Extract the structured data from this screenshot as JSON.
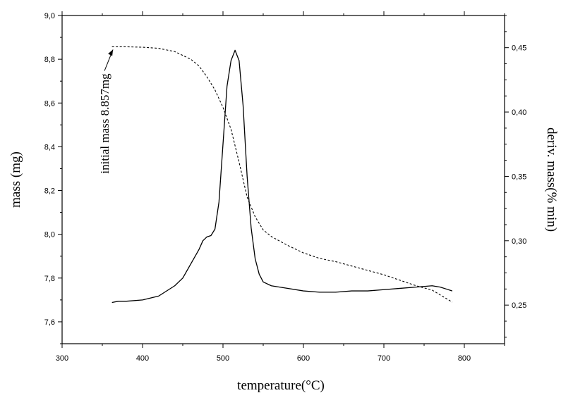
{
  "chart_data": {
    "type": "line",
    "xlabel": "temperature(°C)",
    "ylabel_left": "mass (mg)",
    "ylabel_right": "deriv. mass(% min)",
    "x_range": [
      300,
      850
    ],
    "y_left_range": [
      7.5,
      9.0
    ],
    "y_right_range": [
      0.22,
      0.475
    ],
    "x_ticks": [
      300,
      400,
      500,
      600,
      700,
      800
    ],
    "x_tick_labels": [
      "300",
      "400",
      "500",
      "600",
      "700",
      "800"
    ],
    "y_left_ticks": [
      7.6,
      7.8,
      8.0,
      8.2,
      8.4,
      8.6,
      8.8,
      9.0
    ],
    "y_left_tick_labels": [
      "7,6",
      "7,8",
      "8,0",
      "8,2",
      "8,4",
      "8,6",
      "8,8",
      "9,0"
    ],
    "y_right_ticks": [
      0.25,
      0.3,
      0.35,
      0.4,
      0.45
    ],
    "y_right_tick_labels": [
      "0,25",
      "0,30",
      "0,35",
      "0,40",
      "0,45"
    ],
    "grid": false,
    "legend": "none",
    "annotation": {
      "text": "initial mass 8.857mg",
      "x": 365,
      "y": 8.857,
      "axis": "left"
    },
    "series": [
      {
        "axis": "left",
        "style": "dashed",
        "x": [
          362,
          380,
          400,
          420,
          440,
          460,
          470,
          480,
          490,
          500,
          510,
          520,
          530,
          540,
          550,
          560,
          580,
          600,
          620,
          640,
          660,
          680,
          700,
          720,
          740,
          760,
          785
        ],
        "y": [
          8.857,
          8.857,
          8.855,
          8.85,
          8.835,
          8.8,
          8.77,
          8.72,
          8.66,
          8.58,
          8.48,
          8.33,
          8.17,
          8.08,
          8.02,
          7.99,
          7.95,
          7.915,
          7.89,
          7.875,
          7.855,
          7.835,
          7.815,
          7.79,
          7.765,
          7.745,
          7.69
        ]
      },
      {
        "axis": "right",
        "style": "solid",
        "x": [
          362,
          370,
          380,
          400,
          420,
          440,
          450,
          460,
          470,
          475,
          480,
          485,
          490,
          495,
          500,
          505,
          510,
          515,
          520,
          525,
          530,
          535,
          540,
          545,
          550,
          560,
          580,
          600,
          620,
          640,
          660,
          680,
          700,
          720,
          740,
          760,
          770,
          785
        ],
        "y": [
          0.252,
          0.253,
          0.253,
          0.254,
          0.257,
          0.265,
          0.271,
          0.282,
          0.293,
          0.3,
          0.303,
          0.304,
          0.309,
          0.33,
          0.375,
          0.42,
          0.44,
          0.448,
          0.44,
          0.405,
          0.35,
          0.31,
          0.286,
          0.274,
          0.268,
          0.265,
          0.263,
          0.261,
          0.26,
          0.26,
          0.261,
          0.261,
          0.262,
          0.263,
          0.264,
          0.265,
          0.264,
          0.261
        ]
      }
    ]
  }
}
